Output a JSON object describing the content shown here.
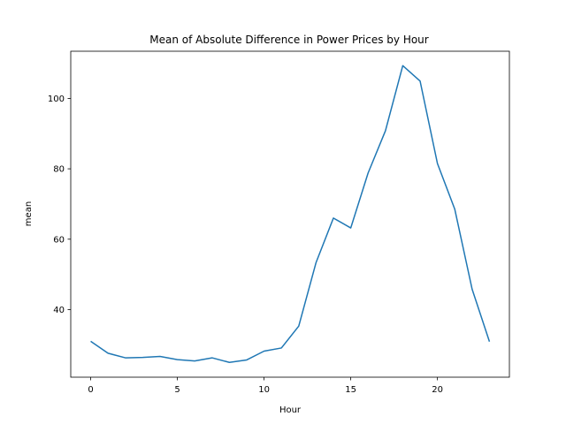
{
  "chart_data": {
    "type": "line",
    "title": "Mean of Absolute Difference in Power Prices by Hour",
    "xlabel": "Hour",
    "ylabel": "mean",
    "xlim": [
      -1.15,
      24.15
    ],
    "ylim": [
      20.8,
      113.4
    ],
    "xticks": [
      0,
      5,
      10,
      15,
      20
    ],
    "yticks": [
      40,
      60,
      80,
      100
    ],
    "grid": false,
    "series": [
      {
        "color": "#1f77b4",
        "x": [
          0,
          1,
          2,
          3,
          4,
          5,
          6,
          7,
          8,
          9,
          10,
          11,
          12,
          13,
          14,
          15,
          16,
          17,
          18,
          19,
          20,
          21,
          22,
          23
        ],
        "y": [
          31.0,
          27.6,
          26.3,
          26.4,
          26.7,
          25.8,
          25.4,
          26.3,
          25.0,
          25.7,
          28.2,
          29.1,
          35.3,
          53.4,
          66.0,
          63.2,
          78.8,
          90.8,
          109.3,
          104.9,
          81.5,
          68.5,
          45.8,
          30.9
        ]
      }
    ]
  }
}
